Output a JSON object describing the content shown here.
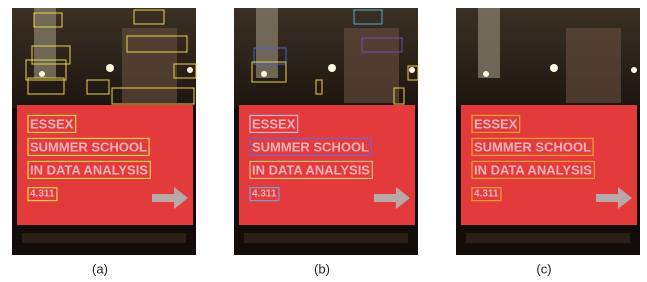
{
  "figure": {
    "sign_lines": [
      "ESSEX",
      "SUMMER SCHOOL",
      "IN DATA ANALYSIS",
      "4.311"
    ],
    "panels": [
      {
        "label": "(a)"
      },
      {
        "label": "(b)"
      },
      {
        "label": "(c)"
      }
    ]
  }
}
